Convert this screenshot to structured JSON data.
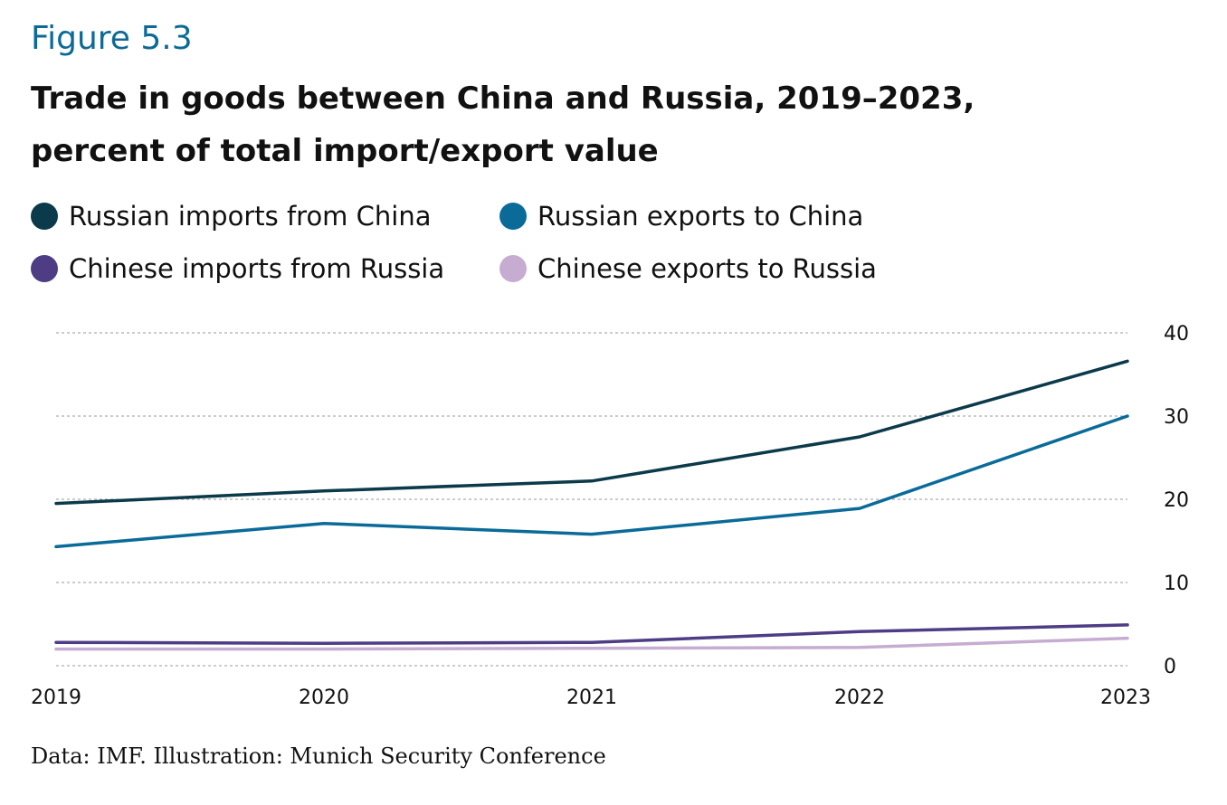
{
  "header": {
    "figure_label": "Figure 5.3",
    "title_line1": "Trade in goods between China and Russia, 2019–2023,",
    "title_line2": "percent of total import/export value"
  },
  "footer": {
    "source": "Data: IMF. Illustration: Munich Security Conference"
  },
  "chart_data": {
    "type": "line",
    "title": "Trade in goods between China and Russia, 2019–2023, percent of total import/export value",
    "x": [
      "2019",
      "2020",
      "2021",
      "2022",
      "2023"
    ],
    "ylim": [
      0,
      40
    ],
    "yticks": [
      "0",
      "10",
      "20",
      "30",
      "40"
    ],
    "grid": true,
    "legend_position": "top-left",
    "series": [
      {
        "name": "Russian imports from China",
        "color": "#0b3a4a",
        "values": [
          19.5,
          21.0,
          22.2,
          27.5,
          36.6
        ]
      },
      {
        "name": "Russian exports to China",
        "color": "#0a6b99",
        "values": [
          14.3,
          17.1,
          15.8,
          18.9,
          30.0
        ]
      },
      {
        "name": "Chinese imports from Russia",
        "color": "#4e3d85",
        "values": [
          2.8,
          2.7,
          2.8,
          4.1,
          4.9
        ]
      },
      {
        "name": "Chinese exports to Russia",
        "color": "#c6acd1",
        "values": [
          2.0,
          2.0,
          2.1,
          2.2,
          3.3
        ]
      }
    ]
  }
}
